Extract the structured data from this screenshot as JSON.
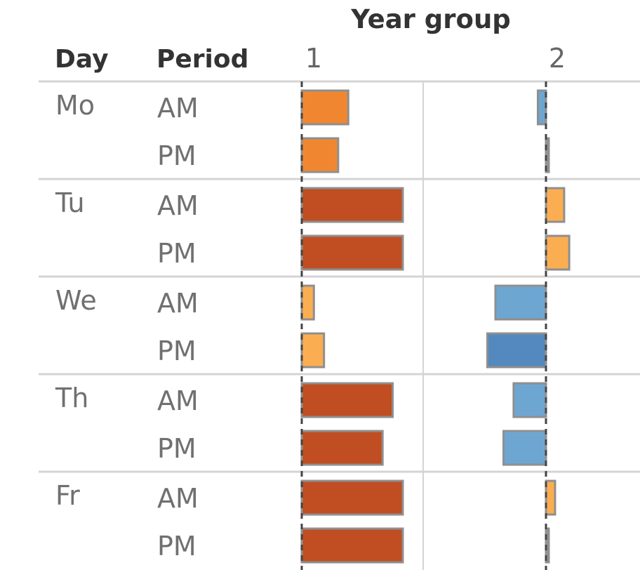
{
  "header": {
    "column_group_title": "Year group",
    "day_header": "Day",
    "period_header": "Period"
  },
  "chart_data": {
    "type": "bar",
    "orientation": "horizontal",
    "columns": [
      "1",
      "2"
    ],
    "days": [
      {
        "label": "Mo",
        "periods": [
          {
            "label": "AM",
            "values": [
              0.46,
              -0.08
            ]
          },
          {
            "label": "PM",
            "values": [
              0.36,
              0.02
            ]
          }
        ]
      },
      {
        "label": "Tu",
        "periods": [
          {
            "label": "AM",
            "values": [
              1.0,
              0.18
            ]
          },
          {
            "label": "PM",
            "values": [
              1.0,
              0.23
            ]
          }
        ]
      },
      {
        "label": "We",
        "periods": [
          {
            "label": "AM",
            "values": [
              0.12,
              -0.5
            ]
          },
          {
            "label": "PM",
            "values": [
              0.22,
              -0.58
            ]
          }
        ]
      },
      {
        "label": "Th",
        "periods": [
          {
            "label": "AM",
            "values": [
              0.9,
              -0.32
            ]
          },
          {
            "label": "PM",
            "values": [
              0.8,
              -0.42
            ]
          }
        ]
      },
      {
        "label": "Fr",
        "periods": [
          {
            "label": "AM",
            "values": [
              1.0,
              0.09
            ]
          },
          {
            "label": "PM",
            "values": [
              1.0,
              0.02
            ]
          }
        ]
      }
    ],
    "color_scale": {
      "strong_positive": "#c04e22",
      "positive": "#f08730",
      "weak_positive": "#fbae51",
      "weak_negative": "#6ea6d2",
      "negative": "#5389be",
      "zero": "#999999"
    }
  }
}
